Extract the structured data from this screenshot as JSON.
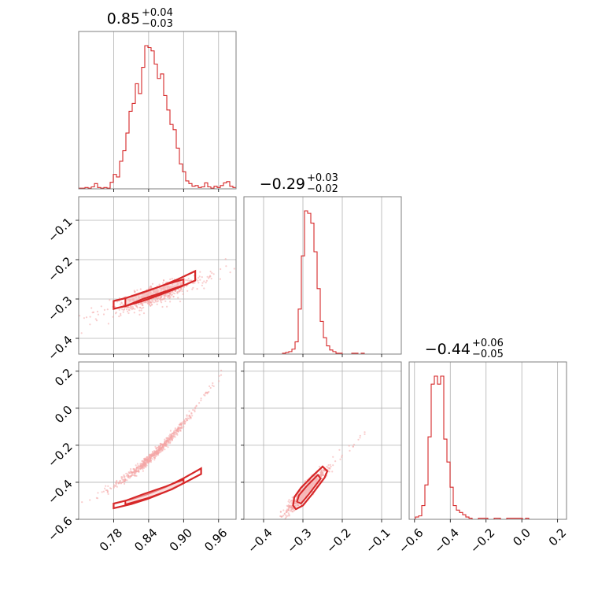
{
  "chart_data": {
    "type": "corner",
    "color": "#d62728",
    "parameters": [
      {
        "id": "p0",
        "range": [
          0.72,
          0.99
        ],
        "ticks": [
          0.78,
          0.84,
          0.9,
          0.96
        ],
        "tick_labels": [
          "0.78",
          "0.84",
          "0.90",
          "0.96"
        ],
        "title": {
          "value": "0.85",
          "plus": "+0.04",
          "minus": "−0.03"
        }
      },
      {
        "id": "p1",
        "range": [
          -0.44,
          -0.04
        ],
        "range_as_x": [
          -0.45,
          -0.05
        ],
        "ticks": [
          -0.4,
          -0.3,
          -0.2,
          -0.1
        ],
        "tick_labels": [
          "−0.4",
          "−0.3",
          "−0.2",
          "−0.1"
        ],
        "title": {
          "value": "−0.29",
          "plus": "+0.03",
          "minus": "−0.02"
        }
      },
      {
        "id": "p2",
        "range": [
          -0.6,
          0.25
        ],
        "range_as_x": [
          -0.63,
          0.25
        ],
        "ticks": [
          -0.6,
          -0.4,
          -0.2,
          0.0,
          0.2
        ],
        "tick_labels": [
          "−0.6",
          "−0.4",
          "−0.2",
          "0.0",
          "0.2"
        ],
        "title": {
          "value": "−0.44",
          "plus": "+0.06",
          "minus": "−0.05"
        }
      }
    ],
    "histograms": [
      {
        "param": 0,
        "bin_start": 0.72,
        "bin_width": 0.0054,
        "counts": [
          1,
          1,
          2,
          1,
          3,
          8,
          2,
          1,
          2,
          1,
          10,
          22,
          18,
          42,
          58,
          85,
          118,
          130,
          160,
          145,
          185,
          218,
          215,
          210,
          190,
          168,
          175,
          142,
          120,
          98,
          90,
          62,
          38,
          26,
          12,
          8,
          4,
          5,
          2,
          3,
          9,
          3,
          1,
          4,
          2,
          5,
          9,
          11,
          4,
          2
        ]
      },
      {
        "param": 1,
        "bin_start": -0.44,
        "bin_width": 0.008,
        "counts": [
          0,
          0,
          0,
          0,
          0,
          0,
          0,
          0,
          0,
          0,
          0,
          1,
          2,
          3,
          6,
          15,
          55,
          120,
          175,
          172,
          160,
          125,
          80,
          40,
          20,
          10,
          5,
          3,
          1,
          1,
          0,
          0,
          0,
          1,
          1,
          0,
          1,
          0,
          0,
          0,
          0,
          0,
          0,
          0,
          0,
          0,
          0,
          0,
          0,
          0
        ]
      },
      {
        "param": 2,
        "bin_start": -0.63,
        "bin_width": 0.0176,
        "counts": [
          0,
          0,
          2,
          3,
          12,
          30,
          72,
          118,
          125,
          118,
          125,
          70,
          50,
          28,
          12,
          8,
          6,
          4,
          2,
          1,
          0,
          0,
          1,
          1,
          1,
          0,
          0,
          1,
          1,
          0,
          0,
          1,
          1,
          1,
          1,
          1,
          0,
          1,
          0,
          0,
          0,
          0,
          0,
          0,
          0,
          0,
          0,
          0,
          0,
          0
        ]
      }
    ],
    "scatter_relations": [
      {
        "x_param": 0,
        "y_param": 1,
        "mode": "linear",
        "slope": 0.5,
        "intercept": -0.715,
        "noise": 0.012,
        "x_mean": 0.85,
        "x_sd": 0.03
      },
      {
        "x_param": 0,
        "y_param": 2,
        "mode": "quadratic",
        "a": 7.5,
        "b": -9.75,
        "c": 2.62,
        "noise": 0.012,
        "x_mean": 0.85,
        "x_sd": 0.03
      },
      {
        "x_param": 1,
        "y_param": 2,
        "mode": "linear",
        "slope": 2.15,
        "intercept": 0.18,
        "noise": 0.018,
        "x_mean": -0.29,
        "x_sd": 0.025
      }
    ],
    "contours": [
      {
        "x_param": 0,
        "y_param": 1,
        "outer": [
          [
            0.78,
            -0.325
          ],
          [
            0.8,
            -0.318
          ],
          [
            0.83,
            -0.305
          ],
          [
            0.86,
            -0.289
          ],
          [
            0.89,
            -0.272
          ],
          [
            0.92,
            -0.253
          ],
          [
            0.92,
            -0.229
          ],
          [
            0.89,
            -0.25
          ],
          [
            0.86,
            -0.268
          ],
          [
            0.83,
            -0.285
          ],
          [
            0.8,
            -0.298
          ],
          [
            0.78,
            -0.305
          ]
        ],
        "inner": [
          [
            0.8,
            -0.318
          ],
          [
            0.83,
            -0.3
          ],
          [
            0.87,
            -0.28
          ],
          [
            0.9,
            -0.265
          ],
          [
            0.9,
            -0.25
          ],
          [
            0.87,
            -0.263
          ],
          [
            0.83,
            -0.283
          ],
          [
            0.8,
            -0.298
          ]
        ]
      },
      {
        "x_param": 0,
        "y_param": 2,
        "outer": [
          [
            0.78,
            -0.54
          ],
          [
            0.81,
            -0.518
          ],
          [
            0.84,
            -0.488
          ],
          [
            0.87,
            -0.45
          ],
          [
            0.9,
            -0.405
          ],
          [
            0.93,
            -0.355
          ],
          [
            0.93,
            -0.325
          ],
          [
            0.9,
            -0.378
          ],
          [
            0.87,
            -0.425
          ],
          [
            0.84,
            -0.462
          ],
          [
            0.81,
            -0.492
          ],
          [
            0.78,
            -0.515
          ]
        ],
        "inner": [
          [
            0.8,
            -0.52
          ],
          [
            0.84,
            -0.484
          ],
          [
            0.88,
            -0.438
          ],
          [
            0.9,
            -0.405
          ],
          [
            0.9,
            -0.385
          ],
          [
            0.87,
            -0.422
          ],
          [
            0.83,
            -0.465
          ],
          [
            0.8,
            -0.5
          ]
        ]
      },
      {
        "x_param": 1,
        "y_param": 2,
        "outer": [
          [
            -0.325,
            -0.525
          ],
          [
            -0.318,
            -0.545
          ],
          [
            -0.3,
            -0.525
          ],
          [
            -0.275,
            -0.46
          ],
          [
            -0.245,
            -0.375
          ],
          [
            -0.238,
            -0.34
          ],
          [
            -0.25,
            -0.315
          ],
          [
            -0.275,
            -0.365
          ],
          [
            -0.305,
            -0.43
          ],
          [
            -0.322,
            -0.48
          ]
        ],
        "inner": [
          [
            -0.315,
            -0.505
          ],
          [
            -0.305,
            -0.515
          ],
          [
            -0.285,
            -0.465
          ],
          [
            -0.255,
            -0.38
          ],
          [
            -0.262,
            -0.36
          ],
          [
            -0.29,
            -0.42
          ],
          [
            -0.31,
            -0.47
          ]
        ]
      }
    ]
  }
}
